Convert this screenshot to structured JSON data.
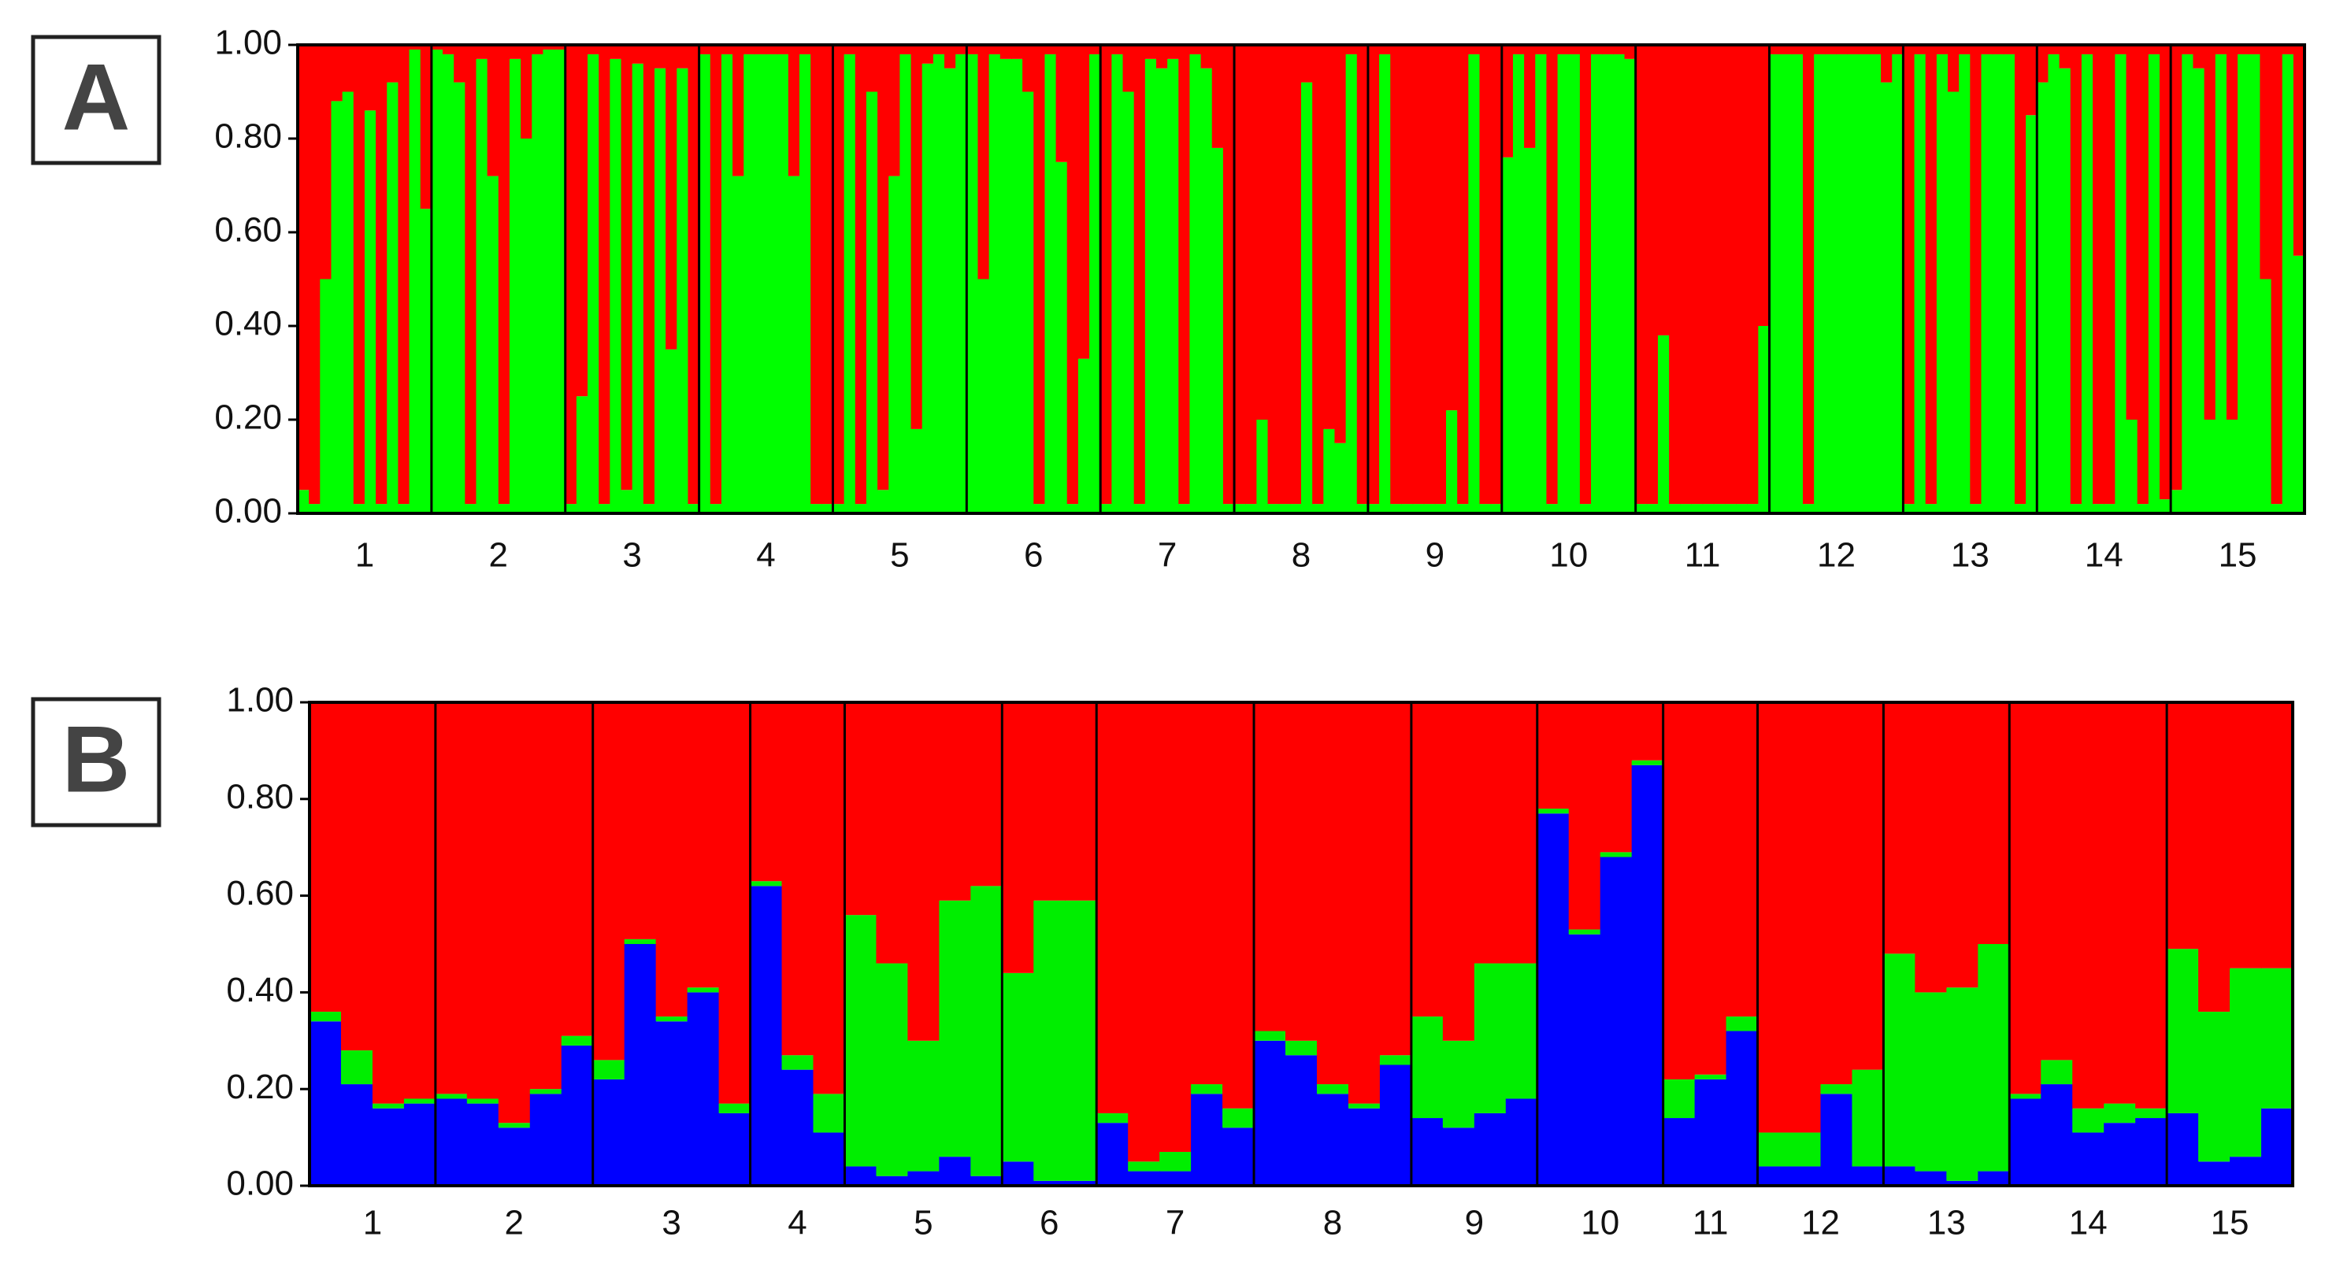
{
  "chart_data": [
    {
      "type": "structure",
      "label": "A",
      "populations": [
        "1",
        "2",
        "3",
        "4",
        "5",
        "6",
        "7",
        "8",
        "9",
        "10",
        "11",
        "12",
        "13",
        "14",
        "15"
      ],
      "ylim": [
        0,
        1
      ],
      "yticks": [
        {
          "value": 0,
          "label": "0.00"
        },
        {
          "value": 0.2,
          "label": "0.20"
        },
        {
          "value": 0.4,
          "label": "0.40"
        },
        {
          "value": 0.6,
          "label": "0.60"
        },
        {
          "value": 0.8,
          "label": "0.80"
        },
        {
          "value": 1,
          "label": "1.00"
        }
      ],
      "series": [
        {
          "color": "#00ff00",
          "values": [
            [
              0.05,
              0.02,
              0.5,
              0.88,
              0.9,
              0.02,
              0.86,
              0.02,
              0.92,
              0.02,
              0.99,
              0.65
            ],
            [
              0.99,
              0.98,
              0.92,
              0.02,
              0.97,
              0.72,
              0.02,
              0.97,
              0.8,
              0.98,
              0.99,
              0.99
            ],
            [
              0.02,
              0.25,
              0.98,
              0.02,
              0.97,
              0.05,
              0.96,
              0.02,
              0.95,
              0.35,
              0.95,
              0.02
            ],
            [
              0.98,
              0.02,
              0.98,
              0.72,
              0.98,
              0.98,
              0.98,
              0.98,
              0.72,
              0.98,
              0.02,
              0.02
            ],
            [
              0.02,
              0.98,
              0.02,
              0.9,
              0.05,
              0.72,
              0.98,
              0.18,
              0.96,
              0.98,
              0.95,
              0.98
            ],
            [
              0.98,
              0.5,
              0.98,
              0.97,
              0.97,
              0.9,
              0.02,
              0.98,
              0.75,
              0.02,
              0.33,
              0.98
            ],
            [
              0.02,
              0.98,
              0.9,
              0.02,
              0.97,
              0.95,
              0.97,
              0.02,
              0.98,
              0.95,
              0.78,
              0.02
            ],
            [
              0.02,
              0.02,
              0.2,
              0.02,
              0.02,
              0.02,
              0.92,
              0.02,
              0.18,
              0.15,
              0.98,
              0.02
            ],
            [
              0.02,
              0.98,
              0.02,
              0.02,
              0.02,
              0.02,
              0.02,
              0.22,
              0.02,
              0.98,
              0.02,
              0.02
            ],
            [
              0.76,
              0.98,
              0.78,
              0.98,
              0.02,
              0.98,
              0.98,
              0.02,
              0.98,
              0.98,
              0.98,
              0.97
            ],
            [
              0.02,
              0.02,
              0.38,
              0.02,
              0.02,
              0.02,
              0.02,
              0.02,
              0.02,
              0.02,
              0.02,
              0.4
            ],
            [
              0.98,
              0.98,
              0.98,
              0.02,
              0.98,
              0.98,
              0.98,
              0.98,
              0.98,
              0.98,
              0.92,
              0.98
            ],
            [
              0.02,
              0.98,
              0.02,
              0.98,
              0.9,
              0.98,
              0.02,
              0.98,
              0.98,
              0.98,
              0.02,
              0.85
            ],
            [
              0.92,
              0.98,
              0.95,
              0.02,
              0.98,
              0.02,
              0.02,
              0.98,
              0.2,
              0.02,
              0.98,
              0.03
            ],
            [
              0.05,
              0.98,
              0.95,
              0.2,
              0.98,
              0.2,
              0.98,
              0.98,
              0.5,
              0.02,
              0.98,
              0.55
            ]
          ]
        },
        {
          "color": "#ff0000",
          "values": [
            [
              0.95,
              0.98,
              0.5,
              0.12,
              0.1,
              0.98,
              0.14,
              0.98,
              0.08,
              0.98,
              0.01,
              0.35
            ],
            [
              0.01,
              0.02,
              0.08,
              0.98,
              0.03,
              0.28,
              0.98,
              0.03,
              0.2,
              0.02,
              0.01,
              0.01
            ],
            [
              0.98,
              0.75,
              0.02,
              0.98,
              0.03,
              0.95,
              0.04,
              0.98,
              0.05,
              0.65,
              0.05,
              0.98
            ],
            [
              0.02,
              0.98,
              0.02,
              0.28,
              0.02,
              0.02,
              0.02,
              0.02,
              0.28,
              0.02,
              0.98,
              0.98
            ],
            [
              0.98,
              0.02,
              0.98,
              0.1,
              0.95,
              0.28,
              0.02,
              0.82,
              0.04,
              0.02,
              0.05,
              0.02
            ],
            [
              0.02,
              0.5,
              0.02,
              0.03,
              0.03,
              0.1,
              0.98,
              0.02,
              0.25,
              0.98,
              0.67,
              0.02
            ],
            [
              0.98,
              0.02,
              0.1,
              0.98,
              0.03,
              0.05,
              0.03,
              0.98,
              0.02,
              0.05,
              0.22,
              0.98
            ],
            [
              0.98,
              0.98,
              0.8,
              0.98,
              0.98,
              0.98,
              0.08,
              0.98,
              0.82,
              0.85,
              0.02,
              0.98
            ],
            [
              0.98,
              0.02,
              0.98,
              0.98,
              0.98,
              0.98,
              0.98,
              0.78,
              0.98,
              0.02,
              0.98,
              0.98
            ],
            [
              0.24,
              0.02,
              0.22,
              0.02,
              0.98,
              0.02,
              0.02,
              0.98,
              0.02,
              0.02,
              0.02,
              0.03
            ],
            [
              0.98,
              0.98,
              0.62,
              0.98,
              0.98,
              0.98,
              0.98,
              0.98,
              0.98,
              0.98,
              0.98,
              0.6
            ],
            [
              0.02,
              0.02,
              0.02,
              0.98,
              0.02,
              0.02,
              0.02,
              0.02,
              0.02,
              0.02,
              0.08,
              0.02
            ],
            [
              0.98,
              0.02,
              0.98,
              0.02,
              0.1,
              0.02,
              0.98,
              0.02,
              0.02,
              0.02,
              0.98,
              0.15
            ],
            [
              0.08,
              0.02,
              0.05,
              0.98,
              0.02,
              0.98,
              0.98,
              0.02,
              0.8,
              0.98,
              0.02,
              0.97
            ],
            [
              0.95,
              0.02,
              0.05,
              0.8,
              0.02,
              0.8,
              0.02,
              0.02,
              0.5,
              0.98,
              0.02,
              0.45
            ]
          ]
        }
      ]
    },
    {
      "type": "structure",
      "label": "B",
      "populations": [
        "1",
        "2",
        "3",
        "4",
        "5",
        "6",
        "7",
        "8",
        "9",
        "10",
        "11",
        "12",
        "13",
        "14",
        "15"
      ],
      "ylim": [
        0,
        1
      ],
      "yticks": [
        {
          "value": 0,
          "label": "0.00"
        },
        {
          "value": 0.2,
          "label": "0.20"
        },
        {
          "value": 0.4,
          "label": "0.40"
        },
        {
          "value": 0.6,
          "label": "0.60"
        },
        {
          "value": 0.8,
          "label": "0.80"
        },
        {
          "value": 1,
          "label": "1.00"
        }
      ],
      "series": [
        {
          "color": "#0000ff",
          "values": [
            [
              0.34,
              0.21,
              0.16,
              0.17
            ],
            [
              0.18,
              0.17,
              0.12,
              0.19,
              0.29
            ],
            [
              0.22,
              0.5,
              0.34,
              0.4,
              0.15
            ],
            [
              0.62,
              0.24,
              0.11
            ],
            [
              0.04,
              0.02,
              0.03,
              0.06,
              0.02
            ],
            [
              0.05,
              0.01,
              0.01
            ],
            [
              0.13,
              0.03,
              0.03,
              0.19,
              0.12
            ],
            [
              0.3,
              0.27,
              0.19,
              0.16,
              0.25
            ],
            [
              0.14,
              0.12,
              0.15,
              0.18
            ],
            [
              0.77,
              0.52,
              0.68,
              0.87
            ],
            [
              0.14,
              0.22,
              0.32
            ],
            [
              0.04,
              0.04,
              0.19,
              0.04
            ],
            [
              0.04,
              0.03,
              0.01,
              0.03
            ],
            [
              0.18,
              0.21,
              0.11,
              0.13,
              0.14
            ],
            [
              0.15,
              0.05,
              0.06,
              0.16
            ]
          ]
        },
        {
          "color": "#00ee00",
          "values": [
            [
              0.02,
              0.07,
              0.01,
              0.01
            ],
            [
              0.01,
              0.01,
              0.01,
              0.01,
              0.02
            ],
            [
              0.04,
              0.01,
              0.01,
              0.01,
              0.02
            ],
            [
              0.01,
              0.03,
              0.08
            ],
            [
              0.52,
              0.44,
              0.27,
              0.53,
              0.6
            ],
            [
              0.39,
              0.58,
              0.58
            ],
            [
              0.02,
              0.02,
              0.04,
              0.02,
              0.04
            ],
            [
              0.02,
              0.03,
              0.02,
              0.01,
              0.02
            ],
            [
              0.21,
              0.18,
              0.31,
              0.28
            ],
            [
              0.01,
              0.01,
              0.01,
              0.01
            ],
            [
              0.08,
              0.01,
              0.03
            ],
            [
              0.07,
              0.07,
              0.02,
              0.2
            ],
            [
              0.44,
              0.37,
              0.4,
              0.47
            ],
            [
              0.01,
              0.05,
              0.05,
              0.04,
              0.02
            ],
            [
              0.34,
              0.31,
              0.39,
              0.29
            ]
          ]
        },
        {
          "color": "#ff0000",
          "values": [
            [
              0.64,
              0.72,
              0.83,
              0.82
            ],
            [
              0.81,
              0.82,
              0.87,
              0.8,
              0.69
            ],
            [
              0.74,
              0.49,
              0.65,
              0.59,
              0.83
            ],
            [
              0.37,
              0.73,
              0.81
            ],
            [
              0.44,
              0.54,
              0.7,
              0.41,
              0.38
            ],
            [
              0.56,
              0.41,
              0.41
            ],
            [
              0.85,
              0.95,
              0.93,
              0.79,
              0.84
            ],
            [
              0.68,
              0.7,
              0.79,
              0.83,
              0.73
            ],
            [
              0.65,
              0.7,
              0.54,
              0.54
            ],
            [
              0.22,
              0.47,
              0.31,
              0.12
            ],
            [
              0.78,
              0.77,
              0.65
            ],
            [
              0.89,
              0.89,
              0.79,
              0.76
            ],
            [
              0.52,
              0.6,
              0.59,
              0.5
            ],
            [
              0.81,
              0.74,
              0.84,
              0.83,
              0.84
            ],
            [
              0.51,
              0.64,
              0.55,
              0.55
            ]
          ]
        }
      ]
    }
  ]
}
